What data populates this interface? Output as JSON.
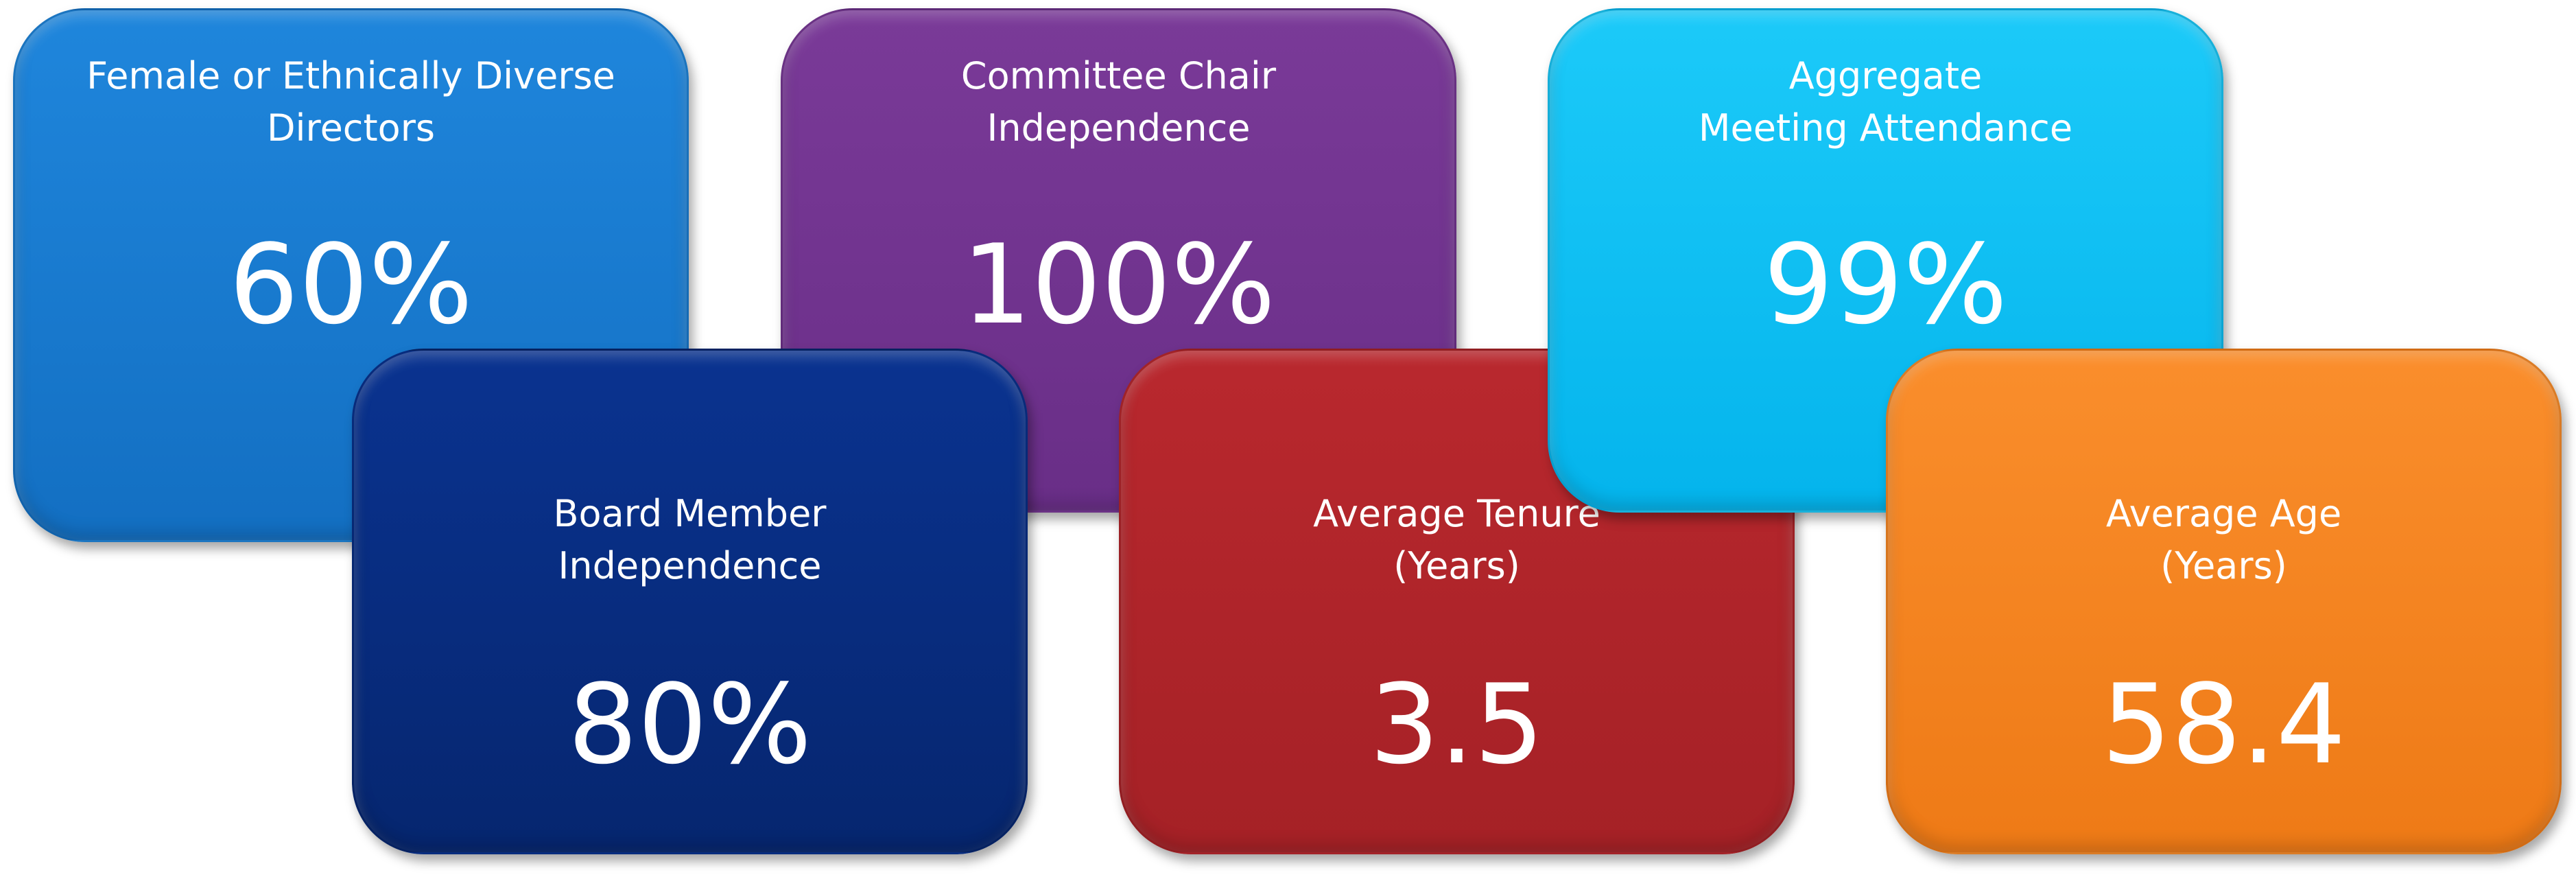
{
  "cards": [
    {
      "title": [
        "Female or Ethnically Diverse",
        "Directors"
      ],
      "value": "60%"
    },
    {
      "title": [
        "Committee Chair",
        "Independence"
      ],
      "value": "100%"
    },
    {
      "title": [
        "Aggregate",
        "Meeting Attendance"
      ],
      "value": "99%"
    },
    {
      "title": [
        "Board Member",
        "Independence"
      ],
      "value": "80%"
    },
    {
      "title": [
        "Average Tenure",
        "(Years)"
      ],
      "value": "3.5"
    },
    {
      "title": [
        "Average Age",
        "(Years)"
      ],
      "value": "58.4"
    }
  ]
}
